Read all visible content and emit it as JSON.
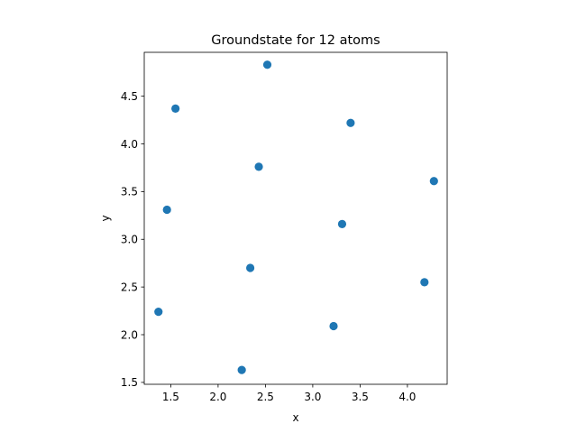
{
  "chart_data": {
    "type": "scatter",
    "title": "Groundstate for 12 atoms",
    "xlabel": "x",
    "ylabel": "y",
    "xlim": [
      1.22,
      4.42
    ],
    "ylim": [
      1.48,
      4.96
    ],
    "xticks": [
      1.5,
      2.0,
      2.5,
      3.0,
      3.5,
      4.0
    ],
    "xtick_labels": [
      "1.5",
      "2.0",
      "2.5",
      "3.0",
      "3.5",
      "4.0"
    ],
    "yticks": [
      1.5,
      2.0,
      2.5,
      3.0,
      3.5,
      4.0,
      4.5
    ],
    "ytick_labels": [
      "1.5",
      "2.0",
      "2.5",
      "3.0",
      "3.5",
      "4.0",
      "4.5"
    ],
    "grid": false,
    "legend": "none",
    "marker_color": "#1f77b4",
    "points": [
      {
        "x": 2.52,
        "y": 4.83
      },
      {
        "x": 1.55,
        "y": 4.37
      },
      {
        "x": 3.4,
        "y": 4.22
      },
      {
        "x": 2.43,
        "y": 3.76
      },
      {
        "x": 4.28,
        "y": 3.61
      },
      {
        "x": 1.46,
        "y": 3.31
      },
      {
        "x": 3.31,
        "y": 3.16
      },
      {
        "x": 2.34,
        "y": 2.7
      },
      {
        "x": 4.18,
        "y": 2.55
      },
      {
        "x": 1.37,
        "y": 2.24
      },
      {
        "x": 3.22,
        "y": 2.09
      },
      {
        "x": 2.25,
        "y": 1.63
      }
    ]
  }
}
